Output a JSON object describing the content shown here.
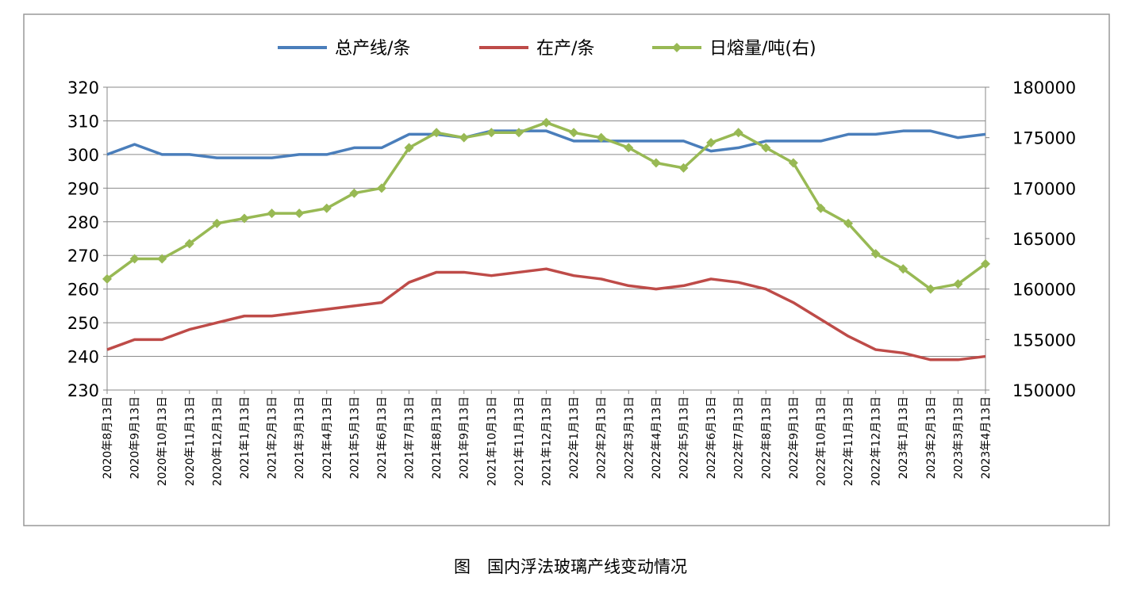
{
  "chart_data": {
    "type": "line",
    "caption": "图　国内浮法玻璃产线变动情况",
    "categories": [
      "2020年8月13日",
      "2020年9月13日",
      "2020年10月13日",
      "2020年11月13日",
      "2020年12月13日",
      "2021年1月13日",
      "2021年2月13日",
      "2021年3月13日",
      "2021年4月13日",
      "2021年5月13日",
      "2021年6月13日",
      "2021年7月13日",
      "2021年8月13日",
      "2021年9月13日",
      "2021年10月13日",
      "2021年11月13日",
      "2021年12月13日",
      "2022年1月13日",
      "2022年2月13日",
      "2022年3月13日",
      "2022年4月13日",
      "2022年5月13日",
      "2022年6月13日",
      "2022年7月13日",
      "2022年8月13日",
      "2022年9月13日",
      "2022年10月13日",
      "2022年11月13日",
      "2022年12月13日",
      "2023年1月13日",
      "2023年2月13日",
      "2023年3月13日",
      "2023年4月13日"
    ],
    "series": [
      {
        "name": "总产线/条",
        "color": "#4a7ebb",
        "values": [
          300,
          303,
          300,
          300,
          299,
          299,
          299,
          300,
          300,
          302,
          302,
          306,
          306,
          305,
          307,
          307,
          307,
          304,
          304,
          304,
          304,
          304,
          301,
          302,
          304,
          304,
          304,
          306,
          306,
          307,
          307,
          305,
          306
        ]
      },
      {
        "name": "在产/条",
        "color": "#be4b48",
        "values": [
          242,
          245,
          245,
          248,
          250,
          252,
          252,
          253,
          254,
          255,
          256,
          262,
          265,
          265,
          264,
          265,
          266,
          264,
          263,
          261,
          260,
          261,
          263,
          262,
          260,
          256,
          251,
          246,
          242,
          241,
          239,
          239,
          240
        ]
      },
      {
        "name": "日熔量/吨(右)",
        "color": "#98b954",
        "axis": "y2",
        "marker": "diamond",
        "values": [
          161000,
          163000,
          163000,
          164500,
          166500,
          167000,
          167500,
          167500,
          168000,
          169500,
          170000,
          174000,
          175500,
          175000,
          175500,
          175500,
          176500,
          175500,
          175000,
          174000,
          172500,
          172000,
          174500,
          175500,
          174000,
          172500,
          168000,
          166500,
          163500,
          162000,
          160000,
          160500,
          162500
        ]
      }
    ],
    "ylim": [
      230,
      320
    ],
    "yticks": [
      230,
      240,
      250,
      260,
      270,
      280,
      290,
      300,
      310,
      320
    ],
    "y2lim": [
      150000,
      180000
    ],
    "y2ticks": [
      150000,
      155000,
      160000,
      165000,
      170000,
      175000,
      180000
    ],
    "grid": true,
    "legend": "top"
  }
}
